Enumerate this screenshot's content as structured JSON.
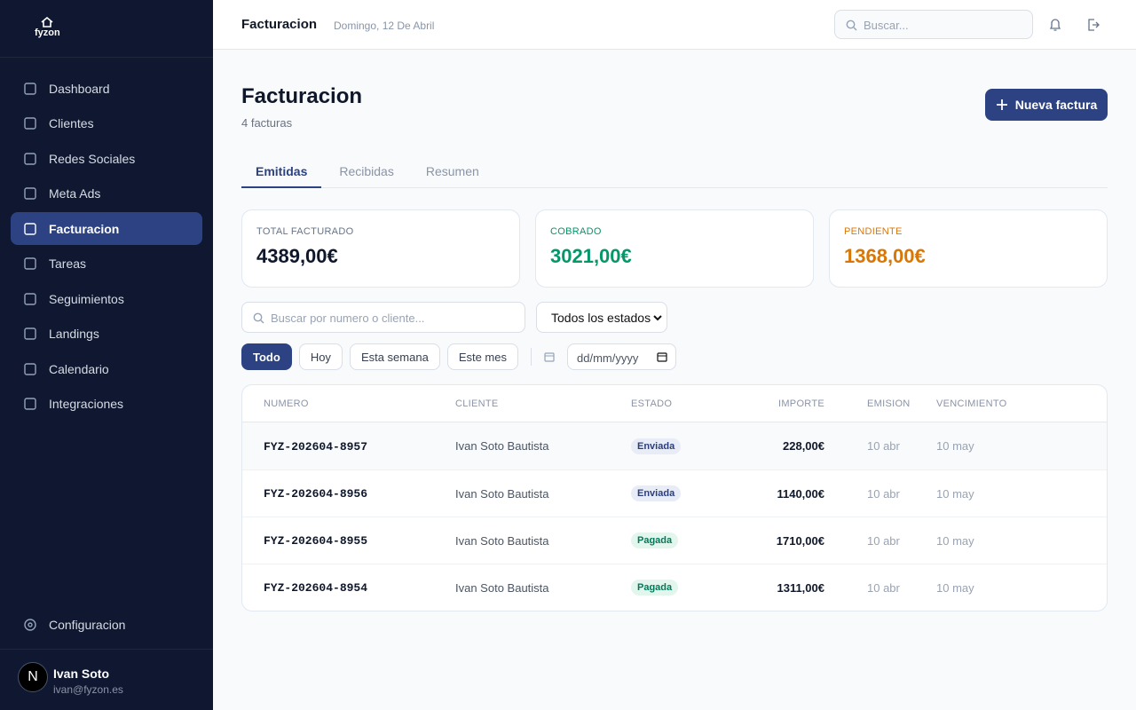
{
  "sidebar": {
    "brand": "fyzon",
    "nav": [
      "Dashboard",
      "Clientes",
      "Redes Sociales",
      "Meta Ads",
      "Facturacion",
      "Tareas",
      "Seguimientos",
      "Landings",
      "Calendario",
      "Integraciones"
    ],
    "active": 4,
    "settings": "Configuracion",
    "user": {
      "initial": "N",
      "name": "Ivan Soto",
      "email": "ivan@fyzon.es"
    }
  },
  "topbar": {
    "title": "Facturacion",
    "date": "Domingo, 12 De Abril",
    "search_placeholder": "Buscar..."
  },
  "header": {
    "title": "Facturacion",
    "subtitle": "4 facturas",
    "button": "Nueva factura"
  },
  "tabs": {
    "items": [
      "Emitidas",
      "Recibidas",
      "Resumen"
    ],
    "active": 0
  },
  "stats": [
    {
      "label": "TOTAL FACTURADO",
      "value": "4389,00€",
      "color": "#64748b",
      "value_color": "#0f172a"
    },
    {
      "label": "COBRADO",
      "value": "3021,00€",
      "color": "#059669",
      "value_color": "#059669"
    },
    {
      "label": "PENDIENTE",
      "value": "1368,00€",
      "color": "#d97706",
      "value_color": "#d97706"
    }
  ],
  "filters": {
    "search_placeholder": "Buscar por numero o cliente...",
    "status": "Todos los estados",
    "ranges": [
      "Todo",
      "Hoy",
      "Esta semana",
      "Este mes"
    ],
    "active_range": 0,
    "date_placeholder": "dd/mm/yyyy"
  },
  "table": {
    "columns": [
      "NUMERO",
      "CLIENTE",
      "ESTADO",
      "IMPORTE",
      "EMISION",
      "VENCIMIENTO"
    ],
    "rows": [
      {
        "numero": "FYZ-202604-8957",
        "cliente": "Ivan Soto Bautista",
        "estado": "Enviada",
        "estado_color": "#2c3e7a",
        "estado_bg": "#e8ecf6",
        "importe": "228,00€",
        "emision": "10 abr",
        "vencimiento": "10 may"
      },
      {
        "numero": "FYZ-202604-8956",
        "cliente": "Ivan Soto Bautista",
        "estado": "Enviada",
        "estado_color": "#2c3e7a",
        "estado_bg": "#e8ecf6",
        "importe": "1140,00€",
        "emision": "10 abr",
        "vencimiento": "10 may"
      },
      {
        "numero": "FYZ-202604-8955",
        "cliente": "Ivan Soto Bautista",
        "estado": "Pagada",
        "estado_color": "#047857",
        "estado_bg": "#e3f6ee",
        "importe": "1710,00€",
        "emision": "10 abr",
        "vencimiento": "10 may"
      },
      {
        "numero": "FYZ-202604-8954",
        "cliente": "Ivan Soto Bautista",
        "estado": "Pagada",
        "estado_color": "#047857",
        "estado_bg": "#e3f6ee",
        "importe": "1311,00€",
        "emision": "10 abr",
        "vencimiento": "10 may"
      }
    ]
  }
}
